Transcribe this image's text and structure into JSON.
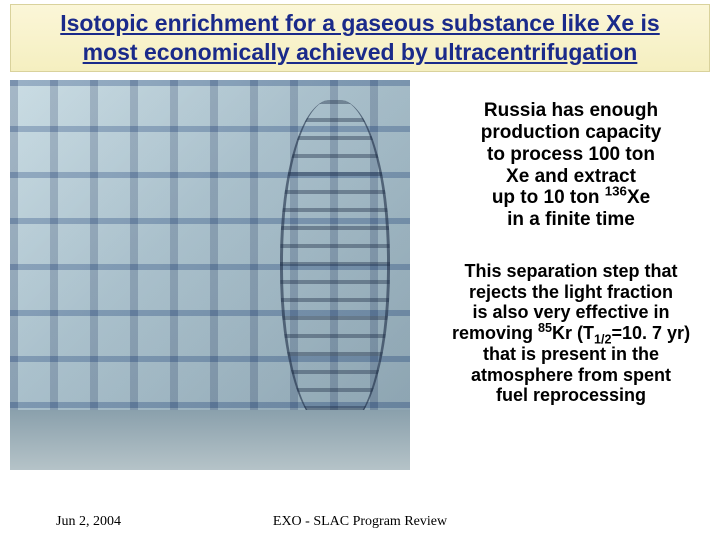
{
  "title": {
    "line1": "Isotopic enrichment for a gaseous substance like Xe is",
    "line2": "most economically achieved by ultracentrifugation",
    "color": "#1a2a8a",
    "bg_top": "#fbf6d8",
    "bg_bottom": "#f5efc0"
  },
  "messages": {
    "capacity": {
      "l1": "Russia has enough",
      "l2": "production capacity",
      "l3": "to process 100 ton",
      "l4": "Xe and extract",
      "l5_pre": "up to 10 ton ",
      "l5_sup": "136",
      "l5_post": "Xe",
      "l6": "in a finite time"
    },
    "separation": {
      "l1": "This separation step that",
      "l2": "rejects the light fraction",
      "l3": "is also very effective in",
      "l4_pre": "removing ",
      "l4_sup": "85",
      "l4_mid": "Kr (T",
      "l4_sub": "1/2",
      "l4_post": "=10. 7 yr)",
      "l5": "that is present in the",
      "l6": "atmosphere from spent",
      "l7": "fuel reprocessing"
    }
  },
  "footer": {
    "date": "Jun 2, 2004",
    "center": "EXO - SLAC Program Review"
  },
  "colors": {
    "title_text": "#1a2a8a",
    "body_text": "#000000"
  }
}
